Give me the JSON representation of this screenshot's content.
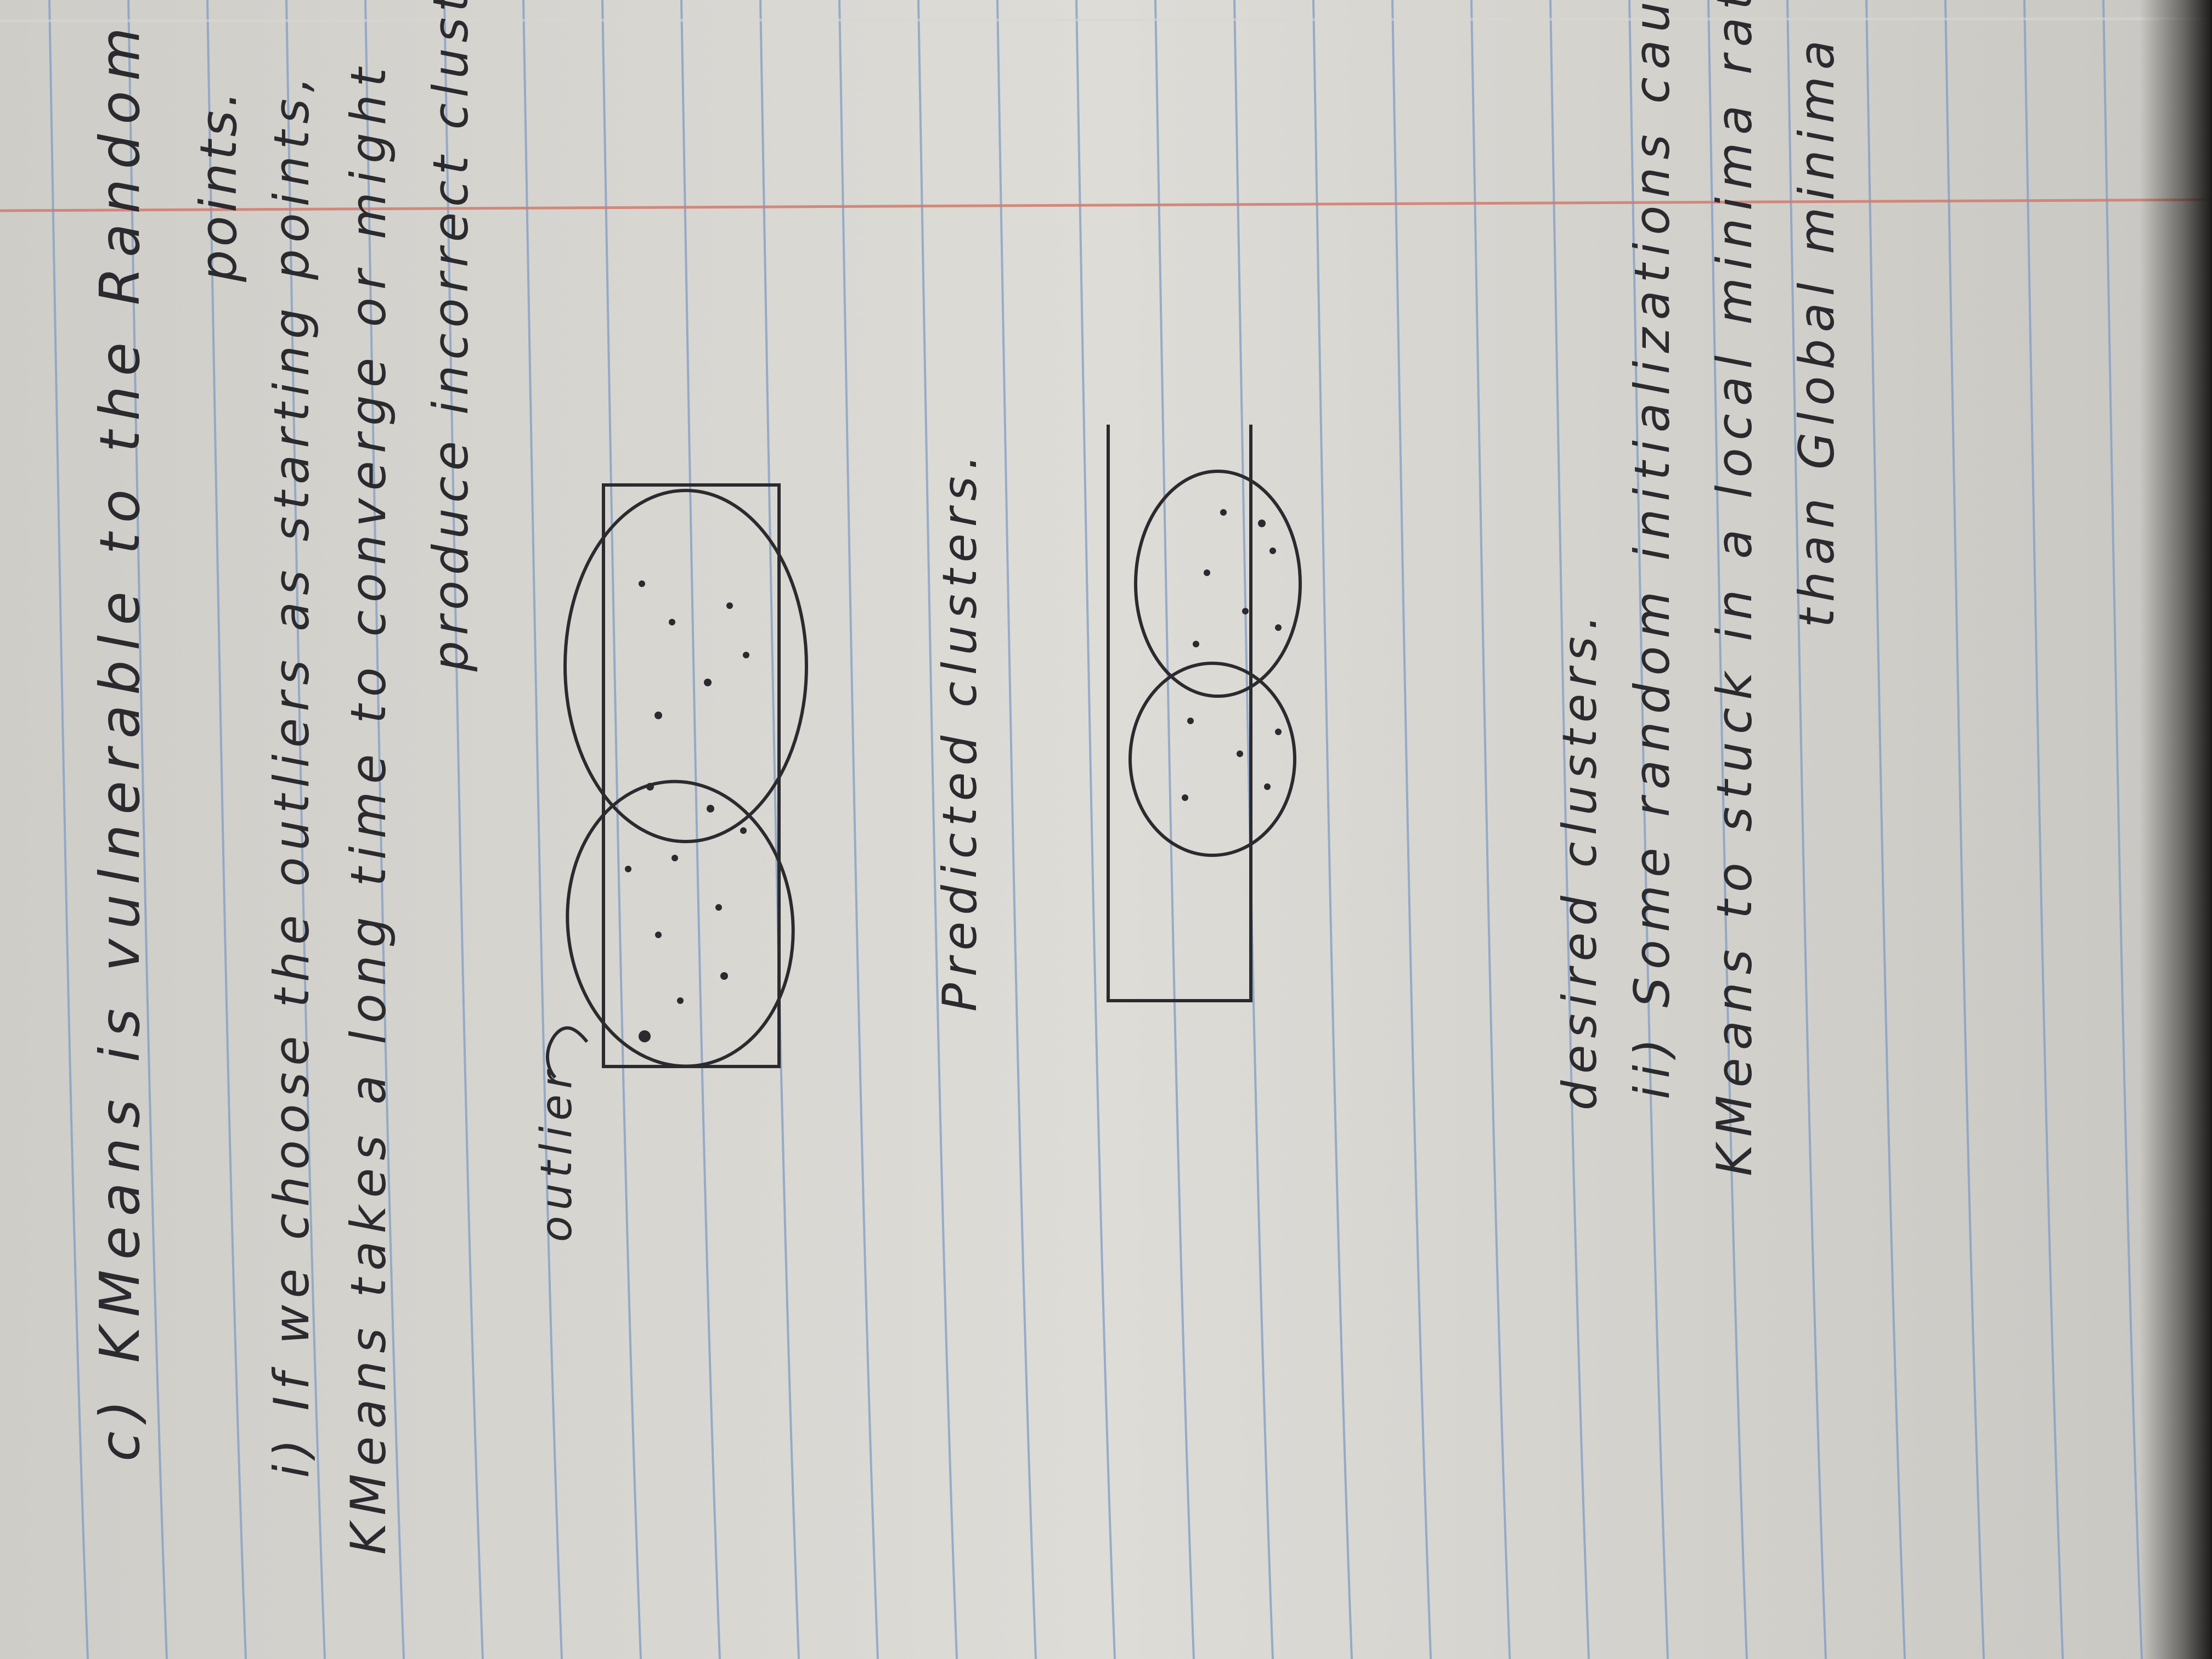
{
  "notes": {
    "heading": "c) KMeans is vulnerable to the Random start",
    "heading_cont": "points.",
    "point_i_line1": "i) If we choose the outliers as starting points,",
    "point_i_line2": "KMeans takes a long time to converge or might",
    "point_i_line3": "produce incorrect clusters",
    "outlier_label": "outlier",
    "caption_predicted": "Predicted clusters.",
    "caption_desired": "desired clusters.",
    "point_ii_line1": "ii) Some random initializations cause",
    "point_ii_line2": "KMeans to stuck in a local minima rather",
    "point_ii_line3": "than Global minima"
  },
  "colors": {
    "paper": "#d9d7d2",
    "rule_line": "#7d9cc4",
    "margin_line": "#d17b6e",
    "ink": "#2b2a2e"
  }
}
